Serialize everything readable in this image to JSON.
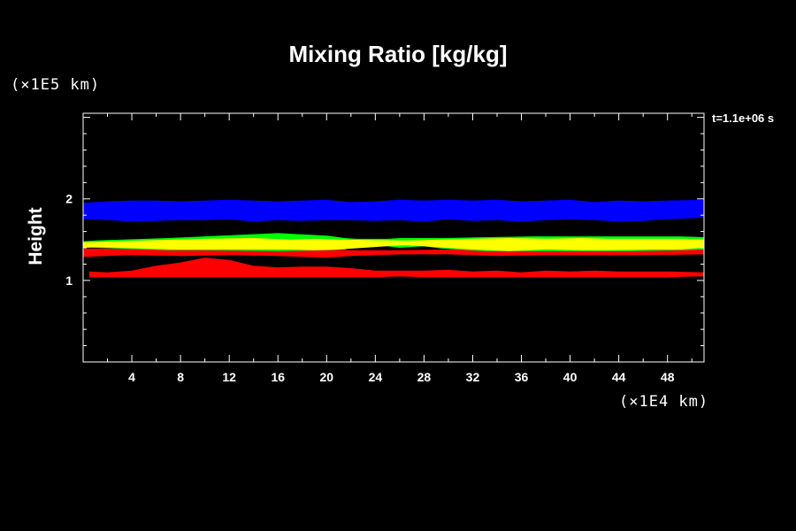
{
  "chart_data": {
    "type": "heatmap",
    "title": "Mixing Ratio [kg/kg]",
    "xlabel": "",
    "ylabel": "Height",
    "x_unit_label": "(×1E4 km)",
    "y_unit_label": "(×1E5 km)",
    "time_label": "t=1.1e+06 s",
    "xlim": [
      0,
      51
    ],
    "ylim": [
      0,
      3.05
    ],
    "x_ticks": [
      4,
      8,
      12,
      16,
      20,
      24,
      28,
      32,
      36,
      40,
      44,
      48
    ],
    "y_ticks": [
      1,
      2
    ],
    "colors": {
      "background": "#000000",
      "blue": "#0000ff",
      "yellow": "#ffff00",
      "green": "#00ff00",
      "red": "#ff0000"
    },
    "layers": [
      {
        "color": "blue",
        "profile": [
          [
            0,
            1.95,
            1.75
          ],
          [
            2,
            1.97,
            1.74
          ],
          [
            4,
            1.98,
            1.72
          ],
          [
            6,
            1.98,
            1.73
          ],
          [
            8,
            1.97,
            1.74
          ],
          [
            10,
            1.98,
            1.74
          ],
          [
            12,
            1.99,
            1.75
          ],
          [
            14,
            1.98,
            1.72
          ],
          [
            16,
            1.97,
            1.74
          ],
          [
            18,
            1.98,
            1.73
          ],
          [
            20,
            1.99,
            1.74
          ],
          [
            22,
            1.96,
            1.74
          ],
          [
            24,
            1.97,
            1.73
          ],
          [
            26,
            1.99,
            1.74
          ],
          [
            28,
            1.98,
            1.72
          ],
          [
            30,
            1.99,
            1.75
          ],
          [
            32,
            1.98,
            1.73
          ],
          [
            34,
            1.99,
            1.74
          ],
          [
            36,
            1.97,
            1.72
          ],
          [
            38,
            1.98,
            1.74
          ],
          [
            40,
            1.99,
            1.75
          ],
          [
            42,
            1.96,
            1.74
          ],
          [
            44,
            1.98,
            1.72
          ],
          [
            46,
            1.97,
            1.73
          ],
          [
            48,
            1.98,
            1.75
          ],
          [
            51,
            1.99,
            1.77
          ]
        ]
      },
      {
        "color": "red",
        "profile": [
          [
            0.5,
            1.11,
            1.04
          ],
          [
            2,
            1.1,
            1.04
          ],
          [
            4,
            1.12,
            1.04
          ],
          [
            6,
            1.18,
            1.04
          ],
          [
            8,
            1.22,
            1.04
          ],
          [
            10,
            1.28,
            1.04
          ],
          [
            12,
            1.25,
            1.04
          ],
          [
            14,
            1.18,
            1.04
          ],
          [
            16,
            1.16,
            1.04
          ],
          [
            18,
            1.17,
            1.04
          ],
          [
            20,
            1.17,
            1.04
          ],
          [
            22,
            1.15,
            1.04
          ],
          [
            24,
            1.12,
            1.04
          ],
          [
            26,
            1.12,
            1.05
          ],
          [
            28,
            1.12,
            1.04
          ],
          [
            30,
            1.13,
            1.04
          ],
          [
            32,
            1.11,
            1.04
          ],
          [
            34,
            1.12,
            1.04
          ],
          [
            36,
            1.1,
            1.04
          ],
          [
            38,
            1.12,
            1.04
          ],
          [
            40,
            1.11,
            1.04
          ],
          [
            42,
            1.12,
            1.04
          ],
          [
            44,
            1.11,
            1.04
          ],
          [
            46,
            1.11,
            1.04
          ],
          [
            48,
            1.11,
            1.04
          ],
          [
            51,
            1.1,
            1.05
          ]
        ]
      },
      {
        "color": "red",
        "profile": [
          [
            0,
            1.39,
            1.29
          ],
          [
            4,
            1.39,
            1.31
          ],
          [
            8,
            1.38,
            1.3
          ],
          [
            12,
            1.38,
            1.31
          ],
          [
            16,
            1.38,
            1.3
          ],
          [
            20,
            1.38,
            1.28
          ],
          [
            22,
            1.37,
            1.3
          ],
          [
            26,
            1.37,
            1.32
          ],
          [
            30,
            1.38,
            1.32
          ],
          [
            34,
            1.37,
            1.3
          ],
          [
            38,
            1.38,
            1.31
          ],
          [
            42,
            1.38,
            1.31
          ],
          [
            46,
            1.38,
            1.31
          ],
          [
            51,
            1.4,
            1.32
          ]
        ]
      },
      {
        "color": "green",
        "profile": [
          [
            0,
            1.48,
            1.4
          ],
          [
            1,
            1.49,
            1.4
          ],
          [
            7,
            1.52,
            1.37
          ],
          [
            10,
            1.54,
            1.37
          ],
          [
            16,
            1.58,
            1.36
          ],
          [
            20,
            1.55,
            1.37
          ],
          [
            21.5,
            1.52,
            1.38
          ],
          [
            22.5,
            1.51,
            1.43
          ],
          [
            24,
            1.51,
            1.43
          ],
          [
            25,
            1.51,
            1.42
          ],
          [
            26,
            1.52,
            1.4
          ],
          [
            28,
            1.52,
            1.42
          ],
          [
            29.5,
            1.52,
            1.39
          ],
          [
            33,
            1.53,
            1.36
          ],
          [
            37,
            1.54,
            1.36
          ],
          [
            41,
            1.54,
            1.36
          ],
          [
            45,
            1.54,
            1.36
          ],
          [
            49,
            1.54,
            1.37
          ],
          [
            51,
            1.53,
            1.38
          ]
        ]
      },
      {
        "color": "yellow",
        "profile": [
          [
            0,
            1.47,
            1.4
          ],
          [
            0.7,
            1.47,
            1.41
          ],
          [
            7.5,
            1.5,
            1.38
          ],
          [
            10,
            1.51,
            1.38
          ],
          [
            14,
            1.52,
            1.38
          ],
          [
            17,
            1.5,
            1.38
          ],
          [
            19,
            1.51,
            1.37
          ],
          [
            21,
            1.5,
            1.38
          ],
          [
            26,
            1.49,
            1.43
          ],
          [
            26.8,
            1.49,
            1.43
          ],
          [
            32,
            1.51,
            1.38
          ],
          [
            35,
            1.52,
            1.36
          ],
          [
            38,
            1.51,
            1.38
          ],
          [
            41,
            1.52,
            1.37
          ],
          [
            43,
            1.51,
            1.37
          ],
          [
            47,
            1.51,
            1.38
          ],
          [
            49,
            1.51,
            1.38
          ],
          [
            51,
            1.5,
            1.4
          ]
        ]
      }
    ]
  }
}
